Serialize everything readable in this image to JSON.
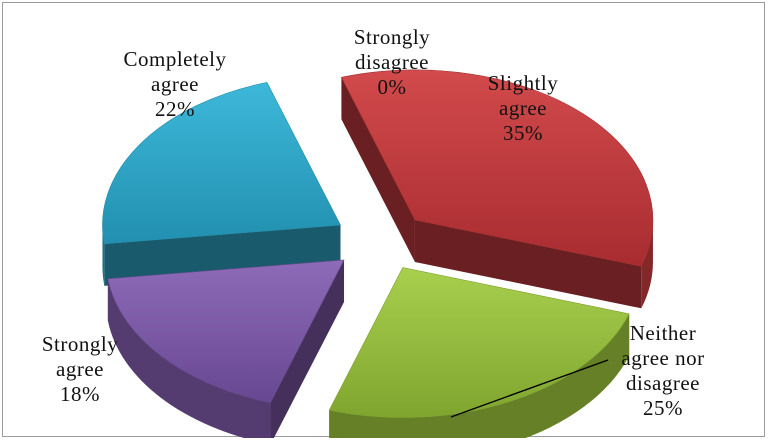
{
  "chart_data": {
    "type": "pie",
    "style": "3d-exploded",
    "slices": [
      {
        "label_lines": [
          "Slightly",
          "agree"
        ],
        "pct": "35%",
        "value": 35,
        "color": "#C0393D"
      },
      {
        "label_lines": [
          "Neither",
          "agree nor",
          "disagree"
        ],
        "pct": "25%",
        "value": 25,
        "color": "#94BC3A"
      },
      {
        "label_lines": [
          "Strongly",
          "agree"
        ],
        "pct": "18%",
        "value": 18,
        "color": "#7B58A6"
      },
      {
        "label_lines": [
          "Completely",
          "agree"
        ],
        "pct": "22%",
        "value": 22,
        "color": "#2DA6C6"
      },
      {
        "label_lines": [
          "Strongly",
          "disagree"
        ],
        "pct": "0%",
        "value": 0,
        "color": "#4F81BD"
      }
    ]
  }
}
